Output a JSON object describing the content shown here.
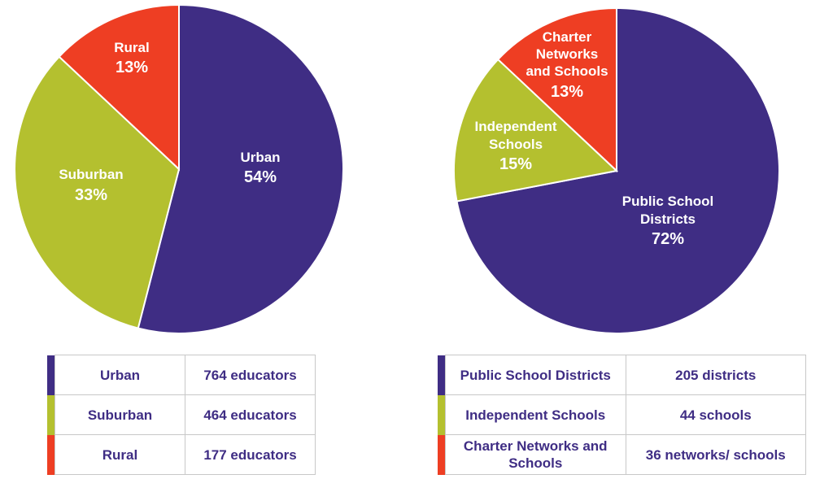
{
  "chart_data": [
    {
      "type": "pie",
      "slices": [
        {
          "label": "Urban",
          "value": 54,
          "display": "54%",
          "color": "#3f2d84"
        },
        {
          "label": "Suburban",
          "value": 33,
          "display": "33%",
          "color": "#b4c02f"
        },
        {
          "label": "Rural",
          "value": 13,
          "display": "13%",
          "color": "#ee3e23"
        }
      ],
      "table": [
        {
          "label": "Urban",
          "count": "764 educators",
          "color": "#3f2d84"
        },
        {
          "label": "Suburban",
          "count": "464 educators",
          "color": "#b4c02f"
        },
        {
          "label": "Rural",
          "count": "177 educators",
          "color": "#ee3e23"
        }
      ]
    },
    {
      "type": "pie",
      "slices": [
        {
          "label": "Public School Districts",
          "value": 72,
          "display": "72%",
          "color": "#3f2d84"
        },
        {
          "label": "Independent Schools",
          "value": 15,
          "display": "15%",
          "color": "#b4c02f"
        },
        {
          "label": "Charter Networks and Schools",
          "value": 13,
          "display": "13%",
          "color": "#ee3e23"
        }
      ],
      "table": [
        {
          "label": "Public School Districts",
          "count": "205 districts",
          "color": "#3f2d84"
        },
        {
          "label": "Independent Schools",
          "count": "44 schools",
          "color": "#b4c02f"
        },
        {
          "label": "Charter Networks and Schools",
          "count": "36 networks/ schools",
          "color": "#ee3e23"
        }
      ]
    }
  ]
}
